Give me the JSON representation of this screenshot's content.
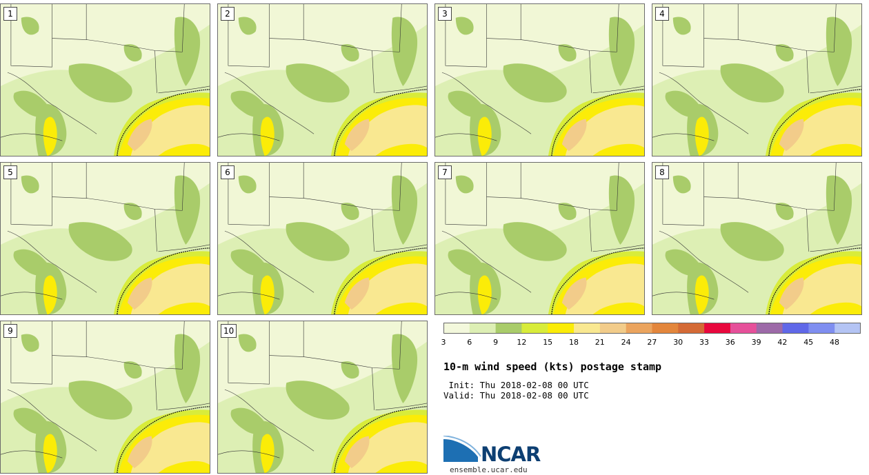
{
  "panels": [
    {
      "label": "1"
    },
    {
      "label": "2"
    },
    {
      "label": "3"
    },
    {
      "label": "4"
    },
    {
      "label": "5"
    },
    {
      "label": "6"
    },
    {
      "label": "7"
    },
    {
      "label": "8"
    },
    {
      "label": "9"
    },
    {
      "label": "10"
    }
  ],
  "colorbar": {
    "colors": [
      "#f3f8dc",
      "#ddefb4",
      "#a9cc6a",
      "#d8ec3a",
      "#fbec08",
      "#f9e891",
      "#f2cc8a",
      "#eba45e",
      "#e3863c",
      "#d46a36",
      "#e8083d",
      "#e6509a",
      "#9d6aa8",
      "#6068e8",
      "#7f8ef0",
      "#b4c4f4"
    ],
    "ticks": [
      "3",
      "6",
      "9",
      "12",
      "15",
      "18",
      "21",
      "24",
      "27",
      "30",
      "33",
      "36",
      "39",
      "42",
      "45",
      "48"
    ]
  },
  "title": "10-m wind speed (kts) postage stamp",
  "init": " Init: Thu 2018-02-08 00 UTC",
  "valid": "Valid: Thu 2018-02-08 00 UTC",
  "logo": {
    "text": "NCAR",
    "site": "ensemble.ucar.edu"
  }
}
